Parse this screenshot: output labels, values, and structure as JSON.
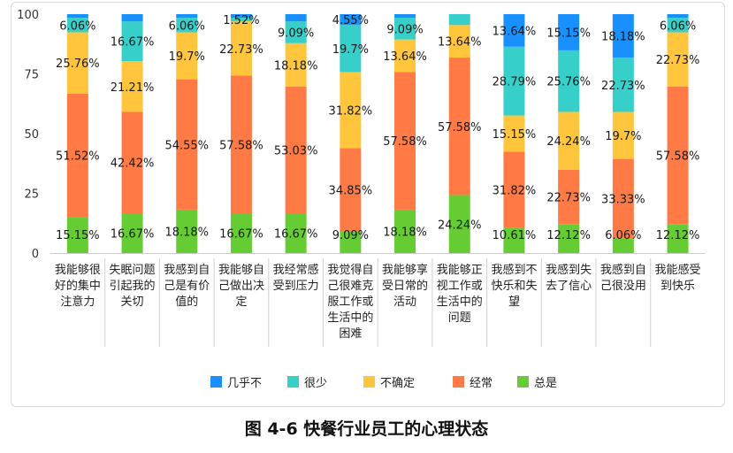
{
  "caption": "图 4-6 快餐行业员工的心理状态",
  "chart_data": {
    "type": "bar",
    "stacked": true,
    "percent": true,
    "ylim": [
      0,
      100
    ],
    "yticks": [
      0,
      25,
      50,
      75,
      100
    ],
    "categories": [
      [
        "我能够很",
        "好的集中",
        "注意力"
      ],
      [
        "失眠问题",
        "引起我的",
        "关切"
      ],
      [
        "我感到自",
        "己是有价",
        "值的"
      ],
      [
        "我能够自",
        "己做出决",
        "定"
      ],
      [
        "我经常感",
        "受到压力"
      ],
      [
        "我觉得自",
        "己很难克",
        "服工作或",
        "生活中的",
        "困难"
      ],
      [
        "我能够享",
        "受日常的",
        "活动"
      ],
      [
        "我能够正",
        "视工作或",
        "生活中的",
        "问题"
      ],
      [
        "我感到不",
        "快乐和失",
        "望"
      ],
      [
        "我感到失",
        "去了信心"
      ],
      [
        "我感到自",
        "己很没用"
      ],
      [
        "我能感受",
        "到快乐"
      ]
    ],
    "series": [
      {
        "name": "总是",
        "color": "#66cc33",
        "values": [
          15.15,
          16.67,
          18.18,
          16.67,
          16.67,
          9.09,
          18.18,
          24.24,
          10.61,
          12.12,
          6.06,
          12.12
        ],
        "labels": [
          "15.15%",
          "16.67%",
          "18.18%",
          "16.67%",
          "16.67%",
          "9.09%",
          "18.18%",
          "24.24%",
          "10.61%",
          "12.12%",
          "6.06%",
          "12.12%"
        ]
      },
      {
        "name": "经常",
        "color": "#ff7a45",
        "values": [
          51.52,
          42.42,
          54.55,
          57.58,
          53.03,
          34.85,
          57.58,
          57.58,
          31.82,
          22.73,
          33.33,
          57.58
        ],
        "labels": [
          "51.52%",
          "42.42%",
          "54.55%",
          "57.58%",
          "53.03%",
          "34.85%",
          "57.58%",
          "57.58%",
          "31.82%",
          "22.73%",
          "33.33%",
          "57.58%"
        ]
      },
      {
        "name": "不确定",
        "color": "#ffc53d",
        "values": [
          25.76,
          21.21,
          19.7,
          22.73,
          18.18,
          31.82,
          13.64,
          13.64,
          15.15,
          24.24,
          19.7,
          22.73
        ],
        "labels": [
          "25.76%",
          "21.21%",
          "19.7%",
          "22.73%",
          "18.18%",
          "31.82%",
          "13.64%",
          "13.64%",
          "15.15%",
          "24.24%",
          "19.7%",
          "22.73%"
        ]
      },
      {
        "name": "很少",
        "color": "#36cfc9",
        "values": [
          6.06,
          16.67,
          6.06,
          1.52,
          9.09,
          19.7,
          9.09,
          4.54,
          28.79,
          25.76,
          22.73,
          6.06
        ],
        "labels": [
          "6.06%",
          "16.67%",
          "6.06%",
          "1.52%",
          "9.09%",
          "19.7%",
          "9.09%",
          "",
          "28.79%",
          "25.76%",
          "22.73%",
          "6.06%"
        ]
      },
      {
        "name": "几乎不",
        "color": "#1890ff",
        "values": [
          1.51,
          3.03,
          1.51,
          1.52,
          3.03,
          4.55,
          1.51,
          0,
          13.64,
          15.15,
          18.18,
          1.51
        ],
        "labels": [
          "",
          "",
          "",
          "",
          "",
          "4.55%",
          "",
          "",
          "13.64%",
          "15.15%",
          "18.18%",
          ""
        ]
      }
    ],
    "legend": {
      "position": "bottom",
      "order": [
        "几乎不",
        "很少",
        "不确定",
        "经常",
        "总是"
      ]
    },
    "grid": false
  }
}
